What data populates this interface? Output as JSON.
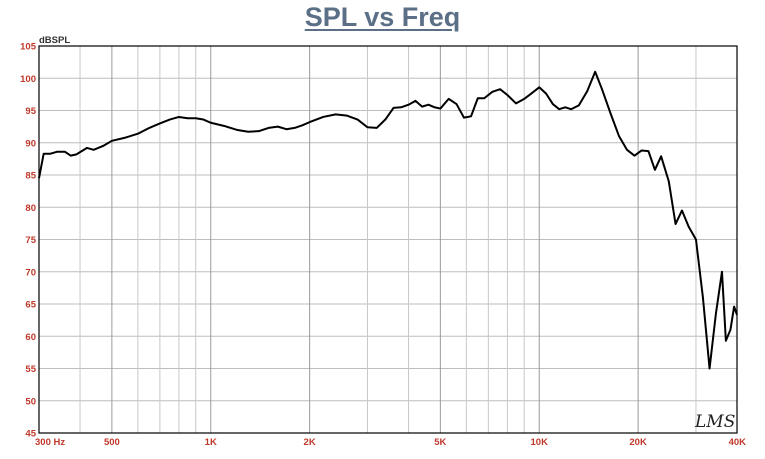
{
  "chart_data": {
    "type": "line",
    "title": "SPL vs Freq",
    "ylabel": "dBSPL",
    "xscale": "log",
    "xlim": [
      300,
      40000
    ],
    "ylim": [
      45,
      105
    ],
    "yticks": [
      45,
      50,
      55,
      60,
      65,
      70,
      75,
      80,
      85,
      90,
      95,
      100,
      105
    ],
    "xticks": [
      {
        "value": 300,
        "label": "300 Hz"
      },
      {
        "value": 500,
        "label": "500"
      },
      {
        "value": 1000,
        "label": "1K"
      },
      {
        "value": 2000,
        "label": "2K"
      },
      {
        "value": 5000,
        "label": "5K"
      },
      {
        "value": 10000,
        "label": "10K"
      },
      {
        "value": 20000,
        "label": "20K"
      },
      {
        "value": 40000,
        "label": "40K"
      }
    ],
    "grid": true,
    "line_color": "#000000",
    "tick_color": "#c0392b",
    "title_color": "#5b6f86",
    "watermark": "LMS",
    "series": [
      {
        "points": [
          [
            300,
            84.5
          ],
          [
            310,
            88.3
          ],
          [
            325,
            88.3
          ],
          [
            340,
            88.6
          ],
          [
            360,
            88.6
          ],
          [
            375,
            88.0
          ],
          [
            390,
            88.2
          ],
          [
            420,
            89.2
          ],
          [
            440,
            88.9
          ],
          [
            470,
            89.5
          ],
          [
            500,
            90.3
          ],
          [
            550,
            90.8
          ],
          [
            600,
            91.4
          ],
          [
            650,
            92.3
          ],
          [
            700,
            93.0
          ],
          [
            750,
            93.6
          ],
          [
            800,
            94.0
          ],
          [
            850,
            93.8
          ],
          [
            900,
            93.8
          ],
          [
            950,
            93.6
          ],
          [
            1000,
            93.1
          ],
          [
            1100,
            92.6
          ],
          [
            1200,
            92.0
          ],
          [
            1300,
            91.7
          ],
          [
            1400,
            91.8
          ],
          [
            1500,
            92.3
          ],
          [
            1600,
            92.5
          ],
          [
            1700,
            92.1
          ],
          [
            1800,
            92.3
          ],
          [
            1900,
            92.7
          ],
          [
            2000,
            93.2
          ],
          [
            2200,
            94.0
          ],
          [
            2400,
            94.4
          ],
          [
            2600,
            94.2
          ],
          [
            2800,
            93.6
          ],
          [
            3000,
            92.4
          ],
          [
            3200,
            92.3
          ],
          [
            3400,
            93.6
          ],
          [
            3600,
            95.4
          ],
          [
            3800,
            95.5
          ],
          [
            4000,
            95.9
          ],
          [
            4200,
            96.5
          ],
          [
            4400,
            95.6
          ],
          [
            4600,
            95.9
          ],
          [
            4800,
            95.5
          ],
          [
            5000,
            95.3
          ],
          [
            5300,
            96.8
          ],
          [
            5600,
            96.0
          ],
          [
            5900,
            93.9
          ],
          [
            6200,
            94.1
          ],
          [
            6500,
            96.9
          ],
          [
            6800,
            96.9
          ],
          [
            7200,
            97.9
          ],
          [
            7600,
            98.3
          ],
          [
            8000,
            97.4
          ],
          [
            8500,
            96.1
          ],
          [
            9000,
            96.8
          ],
          [
            9500,
            97.7
          ],
          [
            10000,
            98.6
          ],
          [
            10500,
            97.6
          ],
          [
            11000,
            96.0
          ],
          [
            11500,
            95.2
          ],
          [
            12000,
            95.5
          ],
          [
            12500,
            95.2
          ],
          [
            13200,
            95.8
          ],
          [
            14000,
            98.0
          ],
          [
            14800,
            101.0
          ],
          [
            15500,
            98.4
          ],
          [
            16500,
            94.5
          ],
          [
            17500,
            91.0
          ],
          [
            18500,
            88.9
          ],
          [
            19500,
            88.0
          ],
          [
            20500,
            88.8
          ],
          [
            21500,
            88.7
          ],
          [
            22500,
            85.8
          ],
          [
            23500,
            87.9
          ],
          [
            24800,
            84.0
          ],
          [
            26000,
            77.4
          ],
          [
            27200,
            79.5
          ],
          [
            28500,
            77.0
          ],
          [
            30000,
            75.0
          ],
          [
            31500,
            66.0
          ],
          [
            33000,
            55.0
          ],
          [
            34500,
            63.5
          ],
          [
            36000,
            70.0
          ],
          [
            37000,
            59.3
          ],
          [
            38200,
            61.0
          ],
          [
            39200,
            64.6
          ],
          [
            40000,
            63.3
          ]
        ]
      }
    ]
  }
}
